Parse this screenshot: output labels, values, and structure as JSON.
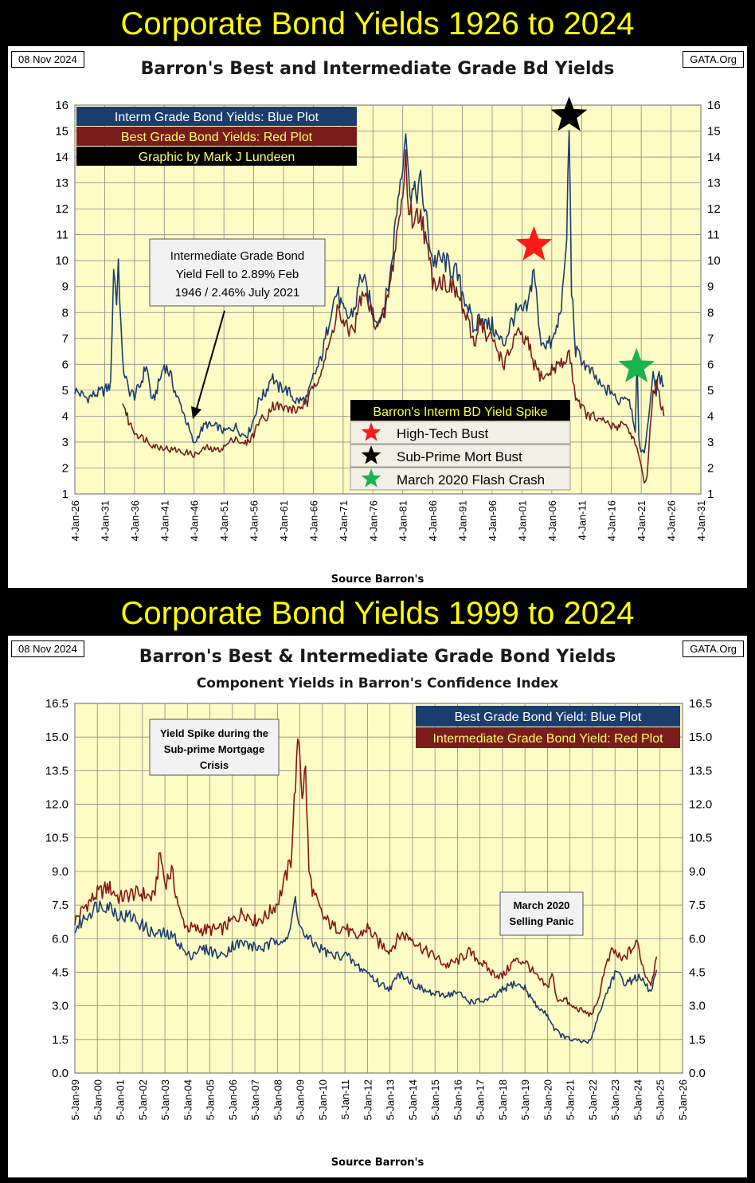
{
  "banners": [
    "Corporate Bond Yields 1926 to 2024",
    "Corporate Bond Yields 1999 to 2024"
  ],
  "chart_data": [
    {
      "type": "line",
      "title": "Barron's Best and Intermediate Grade Bd Yields",
      "date": "08 Nov 2024",
      "site": "GATA.Org",
      "source": "Source Barron's",
      "ylim": [
        1,
        16
      ],
      "yticks": [
        "1",
        "2",
        "3",
        "4",
        "5",
        "6",
        "7",
        "8",
        "9",
        "10",
        "11",
        "12",
        "13",
        "14",
        "15",
        "16"
      ],
      "xlabels": [
        "4-Jan-26",
        "4-Jan-31",
        "4-Jan-36",
        "4-Jan-41",
        "4-Jan-46",
        "4-Jan-51",
        "4-Jan-56",
        "4-Jan-61",
        "4-Jan-66",
        "4-Jan-71",
        "4-Jan-76",
        "4-Jan-81",
        "4-Jan-86",
        "4-Jan-91",
        "4-Jan-96",
        "4-Jan-01",
        "4-Jan-06",
        "4-Jan-11",
        "4-Jan-16",
        "4-Jan-21",
        "4-Jan-26",
        "4-Jan-31"
      ],
      "xlim": [
        1926,
        2031
      ],
      "legend": [
        "Interm Grade Bond Yields: Blue Plot",
        "Best Grade Bond Yields: Red Plot",
        "Graphic by Mark J Lundeen"
      ],
      "annotation": "Intermediate Grade Bond Yield Fell to 2.89% Feb 1946  / 2.46%  July 2021",
      "spike_title": "Barron's Interm BD Yield Spike",
      "spikes": [
        {
          "label": "High-Tech Bust",
          "color": "#ff1a1a",
          "x": 2003,
          "y": 10.6
        },
        {
          "label": "Sub-Prime Mort Bust",
          "color": "#000000",
          "x": 2008.9,
          "y": 15.6
        },
        {
          "label": "March 2020 Flash Crash",
          "color": "#1ab34d",
          "x": 2020.2,
          "y": 5.9
        }
      ],
      "series": [
        {
          "name": "Interm Grade",
          "color": "#1a3d6e",
          "x": [
            1926,
            1928,
            1930,
            1931,
            1932,
            1932.5,
            1933,
            1933.3,
            1934,
            1935,
            1936,
            1937,
            1938,
            1939,
            1940,
            1941,
            1942,
            1943,
            1944,
            1945,
            1946,
            1947,
            1948,
            1949,
            1950,
            1951,
            1952,
            1953,
            1954,
            1955,
            1956,
            1957,
            1958,
            1959,
            1960,
            1961,
            1962,
            1963,
            1964,
            1965,
            1966,
            1967,
            1968,
            1969,
            1970,
            1971,
            1972,
            1973,
            1974,
            1975,
            1976,
            1977,
            1978,
            1979,
            1980,
            1981,
            1981.5,
            1982,
            1983,
            1984,
            1985,
            1986,
            1987,
            1988,
            1989,
            1990,
            1991,
            1992,
            1993,
            1994,
            1995,
            1996,
            1997,
            1998,
            1999,
            2000,
            2001,
            2002,
            2003,
            2004,
            2005,
            2006,
            2007,
            2008,
            2008.5,
            2008.9,
            2009.3,
            2010,
            2011,
            2012,
            2013,
            2014,
            2015,
            2016,
            2017,
            2018,
            2019,
            2020,
            2020.3,
            2020.6,
            2021,
            2021.5,
            2022,
            2022.5,
            2023,
            2023.5,
            2024,
            2024.8
          ],
          "values": [
            5.0,
            4.7,
            4.9,
            5.0,
            5.2,
            9.8,
            8.4,
            10.0,
            6.0,
            5.0,
            4.8,
            5.2,
            6.0,
            4.5,
            5.2,
            6.0,
            5.6,
            4.8,
            4.3,
            3.6,
            2.9,
            3.4,
            3.7,
            3.6,
            3.6,
            3.4,
            3.5,
            3.6,
            3.3,
            3.3,
            3.9,
            4.7,
            4.9,
            5.6,
            5.1,
            5.1,
            4.9,
            4.6,
            4.6,
            4.7,
            5.5,
            6.0,
            6.9,
            8.2,
            8.8,
            8.0,
            7.8,
            8.2,
            9.5,
            8.8,
            8.0,
            7.7,
            8.3,
            9.6,
            12.0,
            14.0,
            15.2,
            13.0,
            12.5,
            13.0,
            11.5,
            10.0,
            10.0,
            10.0,
            9.7,
            9.5,
            8.8,
            8.2,
            7.2,
            8.0,
            7.5,
            7.5,
            7.0,
            6.8,
            7.5,
            8.0,
            8.0,
            8.2,
            9.8,
            7.0,
            6.8,
            6.8,
            7.5,
            9.0,
            11.0,
            15.2,
            9.0,
            6.5,
            6.2,
            5.8,
            5.6,
            5.2,
            5.0,
            5.0,
            4.5,
            4.8,
            4.7,
            3.5,
            6.0,
            3.2,
            2.6,
            2.6,
            3.5,
            4.6,
            5.5,
            5.0,
            5.5,
            5.2
          ]
        },
        {
          "name": "Best Grade",
          "color": "#7a1c1c",
          "x": [
            1934,
            1935,
            1936,
            1937,
            1938,
            1939,
            1940,
            1941,
            1942,
            1943,
            1944,
            1945,
            1946,
            1947,
            1948,
            1949,
            1950,
            1951,
            1952,
            1953,
            1954,
            1955,
            1956,
            1957,
            1958,
            1959,
            1960,
            1961,
            1962,
            1963,
            1964,
            1965,
            1966,
            1967,
            1968,
            1969,
            1970,
            1971,
            1972,
            1973,
            1974,
            1975,
            1976,
            1977,
            1978,
            1979,
            1980,
            1981,
            1981.5,
            1982,
            1983,
            1984,
            1985,
            1986,
            1987,
            1988,
            1989,
            1990,
            1991,
            1992,
            1993,
            1994,
            1995,
            1996,
            1997,
            1998,
            1999,
            2000,
            2001,
            2002,
            2003,
            2004,
            2005,
            2006,
            2007,
            2008,
            2008.9,
            2009.5,
            2010,
            2011,
            2012,
            2013,
            2014,
            2015,
            2016,
            2017,
            2018,
            2019,
            2020,
            2021,
            2021.5,
            2022,
            2022.5,
            2023,
            2023.5,
            2024,
            2024.8
          ],
          "values": [
            4.6,
            3.8,
            3.4,
            3.2,
            3.1,
            2.9,
            2.8,
            2.8,
            2.7,
            2.7,
            2.6,
            2.6,
            2.5,
            2.6,
            2.8,
            2.7,
            2.7,
            2.8,
            3.0,
            3.2,
            2.9,
            3.0,
            3.3,
            3.9,
            3.9,
            4.4,
            4.4,
            4.3,
            4.3,
            4.2,
            4.4,
            4.5,
            5.2,
            5.6,
            6.2,
            7.0,
            8.2,
            7.5,
            7.3,
            7.5,
            8.6,
            8.5,
            7.8,
            7.5,
            8.0,
            9.2,
            11.0,
            12.5,
            14.0,
            12.0,
            11.5,
            12.0,
            10.5,
            9.3,
            9.2,
            9.2,
            9.0,
            8.8,
            8.2,
            7.5,
            6.8,
            7.8,
            7.0,
            7.0,
            6.5,
            6.0,
            6.5,
            7.2,
            7.0,
            6.8,
            6.0,
            5.6,
            5.5,
            5.8,
            6.0,
            6.0,
            6.5,
            5.5,
            4.8,
            4.4,
            4.0,
            4.0,
            3.8,
            3.8,
            3.6,
            3.6,
            3.8,
            3.4,
            3.0,
            2.0,
            1.4,
            1.8,
            3.5,
            4.8,
            5.4,
            4.8,
            4.0
          ]
        }
      ]
    },
    {
      "type": "line",
      "title": "Barron's Best & Intermediate Grade Bond Yields",
      "subtitle": "Component Yields in Barron's Confidence Index",
      "date": "08 Nov 2024",
      "site": "GATA.Org",
      "source": "Source Barron's",
      "ylim": [
        0,
        16.5
      ],
      "yticks": [
        "0.0",
        "1.5",
        "3.0",
        "4.5",
        "6.0",
        "7.5",
        "9.0",
        "10.5",
        "12.0",
        "13.5",
        "15.0",
        "16.5"
      ],
      "xlabels": [
        "5-Jan-99",
        "5-Jan-00",
        "5-Jan-01",
        "5-Jan-02",
        "5-Jan-03",
        "5-Jan-04",
        "5-Jan-05",
        "5-Jan-06",
        "5-Jan-07",
        "5-Jan-08",
        "5-Jan-09",
        "5-Jan-10",
        "5-Jan-11",
        "5-Jan-12",
        "5-Jan-13",
        "5-Jan-14",
        "5-Jan-15",
        "5-Jan-16",
        "5-Jan-17",
        "5-Jan-18",
        "5-Jan-19",
        "5-Jan-20",
        "5-Jan-21",
        "5-Jan-22",
        "5-Jan-23",
        "5-Jan-24",
        "5-Jan-25",
        "5-Jan-26"
      ],
      "xlim": [
        1999,
        2026
      ],
      "legend": [
        "Best Grade Bond Yield: Blue Plot",
        "Intermediate Grade Bond Yield: Red Plot"
      ],
      "annotations": [
        "Yield Spike during the Sub-prime Mortgage Crisis",
        "March 2020 Selling Panic"
      ],
      "series": [
        {
          "name": "Intermediate Grade",
          "color": "#8a1414",
          "x": [
            1999,
            1999.5,
            2000,
            2000.5,
            2001,
            2001.5,
            2002,
            2002.5,
            2002.8,
            2003,
            2003.3,
            2003.7,
            2004,
            2004.5,
            2005,
            2005.5,
            2006,
            2006.5,
            2007,
            2007.5,
            2008,
            2008.3,
            2008.6,
            2008.8,
            2008.95,
            2009.1,
            2009.25,
            2009.4,
            2009.6,
            2010,
            2010.5,
            2011,
            2011.5,
            2012,
            2012.5,
            2013,
            2013.5,
            2014,
            2014.5,
            2015,
            2015.5,
            2016,
            2016.5,
            2017,
            2017.5,
            2018,
            2018.5,
            2019,
            2019.5,
            2020,
            2020.2,
            2020.4,
            2020.8,
            2021,
            2021.5,
            2021.9,
            2022.2,
            2022.5,
            2022.9,
            2023.3,
            2023.7,
            2024,
            2024.3,
            2024.6,
            2024.85
          ],
          "values": [
            6.8,
            7.5,
            8.0,
            8.3,
            7.8,
            8.0,
            8.0,
            7.8,
            9.8,
            8.5,
            9.0,
            7.0,
            6.5,
            6.4,
            6.4,
            6.4,
            6.8,
            7.2,
            6.8,
            7.0,
            7.6,
            8.5,
            9.5,
            13.0,
            15.0,
            12.5,
            13.5,
            9.0,
            8.0,
            7.0,
            6.5,
            6.5,
            6.0,
            6.5,
            5.8,
            5.5,
            6.2,
            6.0,
            5.5,
            5.2,
            4.8,
            5.0,
            5.4,
            5.0,
            4.5,
            4.3,
            5.0,
            5.0,
            4.3,
            3.8,
            4.5,
            3.3,
            3.3,
            3.0,
            2.8,
            2.6,
            3.0,
            4.5,
            5.5,
            5.0,
            5.5,
            5.8,
            4.5,
            4.0,
            5.2
          ]
        },
        {
          "name": "Best Grade",
          "color": "#1a3d6e",
          "x": [
            1999,
            1999.5,
            2000,
            2000.5,
            2001,
            2001.5,
            2002,
            2002.5,
            2003,
            2003.5,
            2004,
            2004.5,
            2005,
            2005.5,
            2006,
            2006.5,
            2007,
            2007.5,
            2008,
            2008.5,
            2008.8,
            2009,
            2009.3,
            2009.6,
            2010,
            2010.5,
            2011,
            2011.5,
            2012,
            2012.5,
            2013,
            2013.5,
            2014,
            2014.5,
            2015,
            2015.5,
            2016,
            2016.5,
            2017,
            2017.5,
            2018,
            2018.5,
            2019,
            2019.5,
            2020,
            2020.3,
            2020.6,
            2021,
            2021.5,
            2021.9,
            2022.2,
            2022.6,
            2023,
            2023.5,
            2024,
            2024.3,
            2024.6,
            2024.85
          ],
          "values": [
            6.4,
            7.0,
            7.5,
            7.5,
            7.0,
            7.0,
            6.6,
            6.2,
            6.2,
            6.0,
            5.2,
            5.5,
            5.5,
            5.2,
            5.7,
            5.8,
            5.6,
            5.6,
            6.0,
            6.0,
            7.8,
            6.5,
            6.0,
            5.8,
            5.5,
            5.2,
            5.3,
            4.8,
            4.5,
            4.0,
            3.8,
            4.5,
            4.0,
            3.7,
            3.5,
            3.5,
            3.6,
            3.2,
            3.2,
            3.3,
            3.7,
            4.0,
            3.8,
            3.0,
            2.6,
            2.0,
            1.7,
            1.5,
            1.4,
            1.4,
            2.4,
            3.5,
            4.5,
            4.0,
            4.3,
            4.0,
            3.6,
            4.6
          ]
        }
      ]
    }
  ]
}
